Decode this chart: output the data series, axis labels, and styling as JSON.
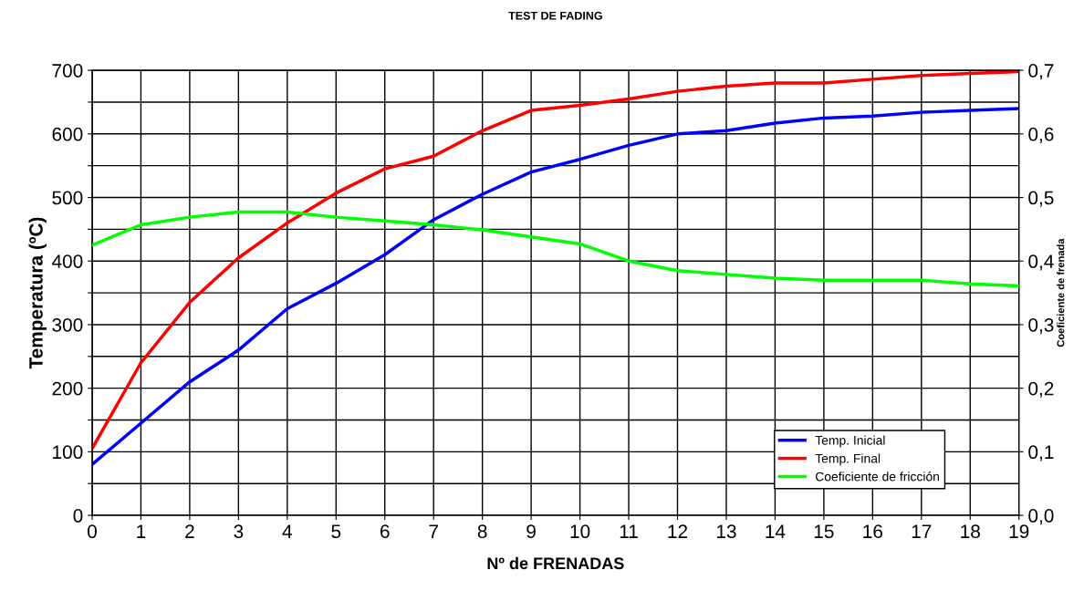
{
  "chart_data": {
    "type": "line",
    "title": "TEST DE FADING",
    "xlabel": "Nº de FRENADAS",
    "ylabel": "Temperatura (ºC)",
    "y2label": "Coeficiente de frenada",
    "x": [
      0,
      1,
      2,
      3,
      4,
      5,
      6,
      7,
      8,
      9,
      10,
      11,
      12,
      13,
      14,
      15,
      16,
      17,
      18,
      19
    ],
    "series": [
      {
        "name": "Temp. Inicial",
        "color": "#0000ff",
        "values": [
          80,
          145,
          210,
          260,
          325,
          365,
          410,
          465,
          505,
          540,
          560,
          582,
          600,
          605,
          617,
          625,
          628,
          634,
          637,
          640
        ]
      },
      {
        "name": "Temp. Final",
        "color": "#ff0000",
        "values": [
          105,
          240,
          335,
          405,
          460,
          507,
          545,
          565,
          605,
          637,
          645,
          655,
          667,
          675,
          680,
          680,
          686,
          692,
          695,
          698
        ]
      },
      {
        "name": "Coeficiente de fricción",
        "color": "#00ff00",
        "axis": "y2",
        "values": [
          0.425,
          0.457,
          0.469,
          0.477,
          0.477,
          0.469,
          0.463,
          0.457,
          0.449,
          0.438,
          0.427,
          0.4,
          0.385,
          0.379,
          0.373,
          0.37,
          0.37,
          0.37,
          0.364,
          0.361
        ]
      }
    ],
    "xlim": [
      0,
      19
    ],
    "xticks": [
      0,
      1,
      2,
      3,
      4,
      5,
      6,
      7,
      8,
      9,
      10,
      11,
      12,
      13,
      14,
      15,
      16,
      17,
      18,
      19
    ],
    "ylim": [
      0,
      700
    ],
    "yticks": [
      0,
      {
        "value": 50,
        "label": null
      },
      100,
      {
        "value": 150,
        "label": null
      },
      200,
      {
        "value": 250,
        "label": null
      },
      300,
      {
        "value": 350,
        "label": null
      },
      400,
      {
        "value": 450,
        "label": null
      },
      500,
      {
        "value": 550,
        "label": null
      },
      600,
      {
        "value": 650,
        "label": null
      },
      700
    ],
    "y2lim": [
      0,
      0.7
    ],
    "y2ticks": [
      {
        "value": 0,
        "label": "0,0"
      },
      {
        "value": 0.1,
        "label": "0,1"
      },
      {
        "value": 0.2,
        "label": "0,2"
      },
      {
        "value": 0.3,
        "label": "0,3"
      },
      {
        "value": 0.4,
        "label": "0,4"
      },
      {
        "value": 0.5,
        "label": "0,5"
      },
      {
        "value": 0.6,
        "label": "0,6"
      },
      {
        "value": 0.7,
        "label": "0,7"
      }
    ],
    "grid": true,
    "legend": "bottom right",
    "marker": "none",
    "line_style": "solid"
  }
}
